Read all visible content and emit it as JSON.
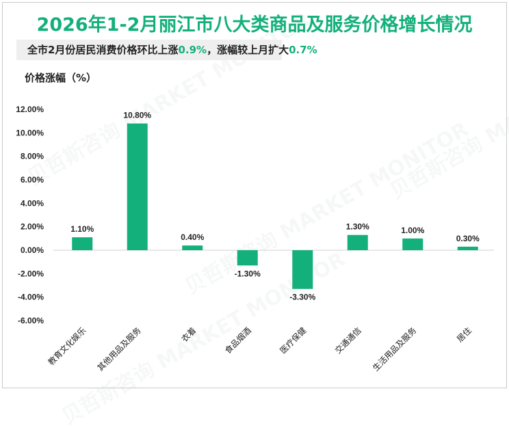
{
  "watermark": "贝哲斯咨询 MARKET MONITOR",
  "subtitle": {
    "text": "全市2月份居民消费价格环比上涨",
    "v1": "0.9%",
    "mid": "，涨幅较上月扩大",
    "v2": "0.7%"
  },
  "colors": {
    "bar": "#13b07b",
    "title": "#13b07b"
  },
  "chart_data": {
    "type": "bar",
    "title": "2026年1-2月丽江市八大类商品及服务价格增长情况",
    "ylabel": "价格涨幅（%）",
    "xlabel": "",
    "categories": [
      "教育文化娱乐",
      "其他用品及服务",
      "衣着",
      "食品烟酒",
      "医疗保健",
      "交通通信",
      "生活用品及服务",
      "居住"
    ],
    "values": [
      1.1,
      10.8,
      0.4,
      -1.3,
      -3.3,
      1.3,
      1.0,
      0.3
    ],
    "data_labels": [
      "1.10%",
      "10.80%",
      "0.40%",
      "-1.30%",
      "-3.30%",
      "1.30%",
      "1.00%",
      "0.30%"
    ],
    "ylim": [
      -6,
      12
    ],
    "yticks": [
      "-6.00%",
      "-4.00%",
      "-2.00%",
      "0.00%",
      "2.00%",
      "4.00%",
      "6.00%",
      "8.00%",
      "10.00%",
      "12.00%"
    ],
    "grid": false,
    "legend": "none"
  }
}
